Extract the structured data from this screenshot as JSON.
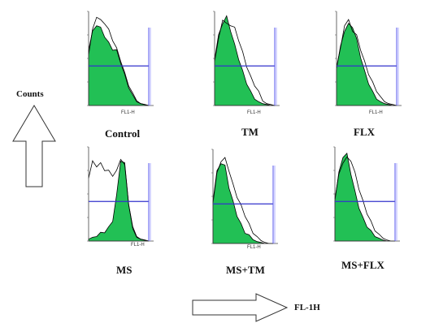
{
  "figure": {
    "y_label": "Counts",
    "x_label": "FL-1H",
    "x_tick_label": "FL1-H",
    "ms_x_tick_label": "FL1-H"
  },
  "chart_data": [
    {
      "type": "area",
      "title": "Control",
      "xlabel": "FL1-H",
      "ylabel": "Counts",
      "marker_level": 0.42,
      "fill_color": "#22c055",
      "series": [
        {
          "name": "green",
          "values": [
            0.6,
            0.78,
            0.86,
            0.82,
            0.74,
            0.66,
            0.6,
            0.58,
            0.46,
            0.32,
            0.2,
            0.1,
            0.04,
            0.02,
            0.01,
            0.0
          ]
        },
        {
          "name": "outline",
          "values": [
            0.55,
            0.8,
            0.95,
            0.9,
            0.88,
            0.8,
            0.7,
            0.6,
            0.48,
            0.34,
            0.22,
            0.12,
            0.05,
            0.02,
            0.01,
            0.0
          ]
        }
      ]
    },
    {
      "type": "area",
      "title": "TM",
      "xlabel": "FL1-H",
      "ylabel": "Counts",
      "marker_level": 0.42,
      "fill_color": "#22c055",
      "series": [
        {
          "name": "green",
          "values": [
            0.5,
            0.74,
            0.88,
            0.94,
            0.8,
            0.64,
            0.5,
            0.36,
            0.24,
            0.14,
            0.08,
            0.04,
            0.02,
            0.01,
            0.0,
            0.0
          ]
        },
        {
          "name": "outline",
          "values": [
            0.48,
            0.7,
            0.92,
            0.86,
            0.86,
            0.82,
            0.7,
            0.56,
            0.42,
            0.3,
            0.22,
            0.14,
            0.06,
            0.02,
            0.01,
            0.0
          ]
        }
      ]
    },
    {
      "type": "area",
      "title": "FLX",
      "xlabel": "FL1-H",
      "ylabel": "Counts",
      "marker_level": 0.42,
      "fill_color": "#22c055",
      "series": [
        {
          "name": "green",
          "values": [
            0.4,
            0.62,
            0.8,
            0.86,
            0.84,
            0.7,
            0.52,
            0.36,
            0.24,
            0.14,
            0.08,
            0.04,
            0.02,
            0.01,
            0.0,
            0.0
          ]
        },
        {
          "name": "outline",
          "values": [
            0.42,
            0.6,
            0.86,
            0.9,
            0.8,
            0.74,
            0.6,
            0.46,
            0.34,
            0.24,
            0.16,
            0.08,
            0.04,
            0.02,
            0.01,
            0.0
          ]
        }
      ]
    },
    {
      "type": "area",
      "title": "MS",
      "xlabel": "FL1-H",
      "ylabel": "Counts",
      "marker_level": 0.42,
      "fill_color": "#22c055",
      "series": [
        {
          "name": "green",
          "values": [
            0.02,
            0.04,
            0.06,
            0.08,
            0.1,
            0.14,
            0.22,
            0.48,
            0.86,
            0.82,
            0.4,
            0.12,
            0.04,
            0.02,
            0.01,
            0.0
          ]
        },
        {
          "name": "outline",
          "values": [
            0.68,
            0.84,
            0.8,
            0.82,
            0.76,
            0.74,
            0.7,
            0.74,
            0.88,
            0.8,
            0.4,
            0.14,
            0.06,
            0.02,
            0.01,
            0.0
          ]
        }
      ]
    },
    {
      "type": "area",
      "title": "MS+TM",
      "xlabel": "FL1-H",
      "ylabel": "Counts",
      "marker_level": 0.42,
      "fill_color": "#22c055",
      "series": [
        {
          "name": "green",
          "values": [
            0.46,
            0.76,
            0.86,
            0.82,
            0.6,
            0.44,
            0.3,
            0.2,
            0.12,
            0.08,
            0.04,
            0.02,
            0.01,
            0.0,
            0.0,
            0.0
          ]
        },
        {
          "name": "outline",
          "values": [
            0.44,
            0.74,
            0.88,
            0.9,
            0.78,
            0.62,
            0.5,
            0.4,
            0.3,
            0.2,
            0.12,
            0.06,
            0.03,
            0.01,
            0.0,
            0.0
          ]
        }
      ]
    },
    {
      "type": "area",
      "title": "MS+FLX",
      "xlabel": "FL1-H",
      "ylabel": "Counts",
      "marker_level": 0.42,
      "fill_color": "#22c055",
      "series": [
        {
          "name": "green",
          "values": [
            0.44,
            0.72,
            0.9,
            0.92,
            0.72,
            0.52,
            0.36,
            0.24,
            0.16,
            0.1,
            0.06,
            0.03,
            0.01,
            0.0,
            0.0,
            0.0
          ]
        },
        {
          "name": "outline",
          "values": [
            0.46,
            0.7,
            0.84,
            0.88,
            0.86,
            0.72,
            0.56,
            0.42,
            0.3,
            0.2,
            0.12,
            0.06,
            0.03,
            0.01,
            0.0,
            0.0
          ]
        }
      ]
    }
  ]
}
